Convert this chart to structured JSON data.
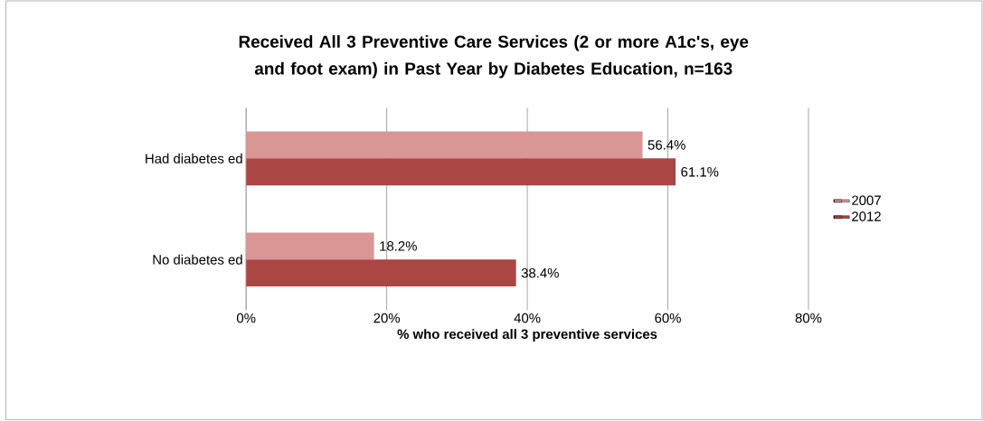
{
  "chart_data": {
    "type": "bar",
    "orientation": "horizontal",
    "title": "Received All 3 Preventive Care Services (2 or more A1c's, eye and foot exam) in Past Year by Diabetes Education, n=163",
    "xlabel": "% who received all 3 preventive services",
    "categories": [
      "Had diabetes ed",
      "No diabetes ed"
    ],
    "series": [
      {
        "name": "2007",
        "color": "#d99694",
        "values": [
          56.4,
          18.2
        ],
        "value_labels": [
          "56.4%",
          "18.2%"
        ]
      },
      {
        "name": "2012",
        "color": "#aa4643",
        "values": [
          61.1,
          38.4
        ],
        "value_labels": [
          "61.1%",
          "38.4%"
        ]
      }
    ],
    "xlim": [
      0,
      80
    ],
    "xticks": [
      {
        "value": 0,
        "label": "0%"
      },
      {
        "value": 20,
        "label": "20%"
      },
      {
        "value": 40,
        "label": "40%"
      },
      {
        "value": 60,
        "label": "60%"
      },
      {
        "value": 80,
        "label": "80%"
      }
    ],
    "grid": "x",
    "legend": "right"
  }
}
